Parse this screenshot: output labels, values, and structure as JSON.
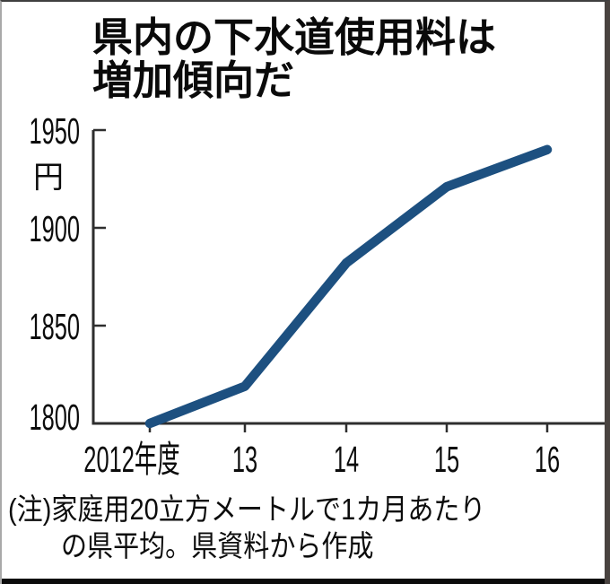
{
  "title": {
    "line1": "県内の下水道使用料は",
    "line2": "増加傾向だ"
  },
  "note": {
    "line1": "(注)家庭用20立方メートルで1カ月あたり",
    "line2": "の県平均。県資料から作成"
  },
  "chart_data": {
    "type": "line",
    "title": "県内の下水道使用料は増加傾向だ",
    "unit_label": "円",
    "categories": [
      "2012年度",
      "13",
      "14",
      "15",
      "16"
    ],
    "series": [
      {
        "values": [
          1800,
          1819,
          1882,
          1921,
          1940
        ]
      }
    ],
    "ylim": [
      1800,
      1950
    ],
    "yticks": [
      1950,
      1900,
      1850,
      1800
    ],
    "ytick_labels": [
      "1950",
      "1900",
      "1850",
      "1800"
    ],
    "xlabel": "年度",
    "ylabel": "円",
    "grid": false,
    "legend": false,
    "line_color": "#1d5080",
    "axis_color": "#2e2e2e",
    "source_note": "(注)家庭用20立方メートルで1カ月あたりの県平均。県資料から作成"
  }
}
